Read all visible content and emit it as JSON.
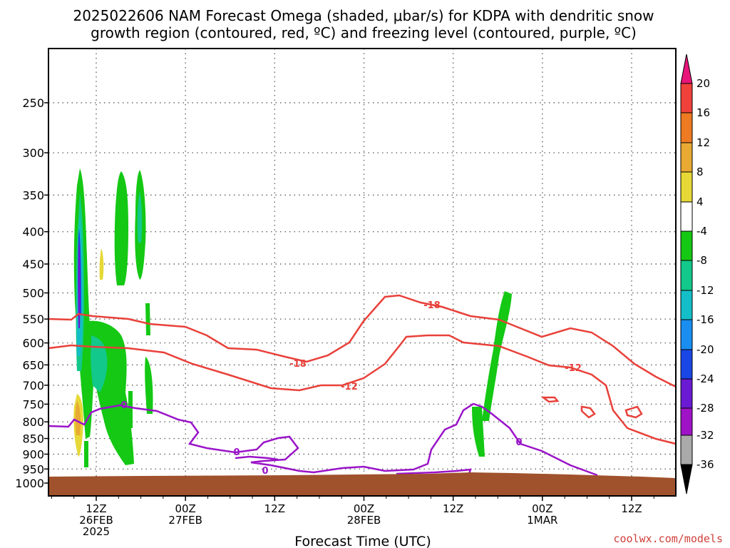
{
  "title_line1": "2025022606 NAM Forecast Omega (shaded, μbar/s) for KDPA with dendritic snow",
  "title_line2": "growth region (contoured, red, ºC) and freezing level (contoured, purple, ºC)",
  "xlabel": "Forecast Time (UTC)",
  "credit": "coolwx.com/models",
  "chart_data": {
    "type": "heatmap",
    "title": "2025022606 NAM Forecast Omega (shaded, μbar/s) for KDPA with dendritic snow growth region (contoured, red, ºC) and freezing level (contoured, purple, ºC)",
    "xlabel": "Forecast Time (UTC)",
    "ylabel": "",
    "y_ticks": [
      250,
      300,
      350,
      400,
      450,
      500,
      550,
      600,
      650,
      700,
      750,
      800,
      850,
      900,
      950,
      1000
    ],
    "y_tick_labels": [
      "250",
      "300",
      "350",
      "400",
      "450",
      "500",
      "550",
      "600",
      "650",
      "700",
      "750",
      "800",
      "850",
      "900",
      "950",
      "1000"
    ],
    "x_ticks": [
      {
        "hour": 6,
        "line1": "12Z",
        "line2": "26FEB",
        "line3": "2025"
      },
      {
        "hour": 18,
        "line1": "00Z",
        "line2": "27FEB",
        "line3": ""
      },
      {
        "hour": 30,
        "line1": "12Z",
        "line2": "",
        "line3": ""
      },
      {
        "hour": 42,
        "line1": "00Z",
        "line2": "28FEB",
        "line3": ""
      },
      {
        "hour": 54,
        "line1": "12Z",
        "line2": "",
        "line3": ""
      },
      {
        "hour": 66,
        "line1": "00Z",
        "line2": "1MAR",
        "line3": ""
      },
      {
        "hour": 78,
        "line1": "12Z",
        "line2": "",
        "line3": ""
      }
    ],
    "colorbar": {
      "labels": [
        "20",
        "16",
        "12",
        "8",
        "4",
        "-4",
        "-8",
        "-12",
        "-16",
        "-20",
        "-24",
        "-28",
        "-32",
        "-36"
      ],
      "colors": {
        "gt20": "#e8147a",
        "16_20": "#f0423a",
        "12_16": "#ee7a22",
        "8_12": "#e8aa32",
        "4_8": "#e6d836",
        "-4_4": "#ffffff",
        "-8_-4": "#14c814",
        "-12_-8": "#12c88a",
        "-16_-12": "#14bec8",
        "-20_-16": "#1a8ef0",
        "-24_-20": "#1a46e6",
        "-28_-24": "#6a1ad2",
        "-32_-28": "#a012c8",
        "-36_-32": "#aaaaaa",
        "lt-36": "#000000"
      }
    },
    "contour_labels": {
      "red": [
        "-18",
        "-18",
        "-12",
        "-12"
      ],
      "purple": [
        "0",
        "0",
        "0",
        "0"
      ]
    },
    "colors": {
      "dgz_contour": "#e8413a",
      "freezing_contour": "#9a14c8",
      "terrain": "#a0522d",
      "grid": "#666666"
    }
  }
}
